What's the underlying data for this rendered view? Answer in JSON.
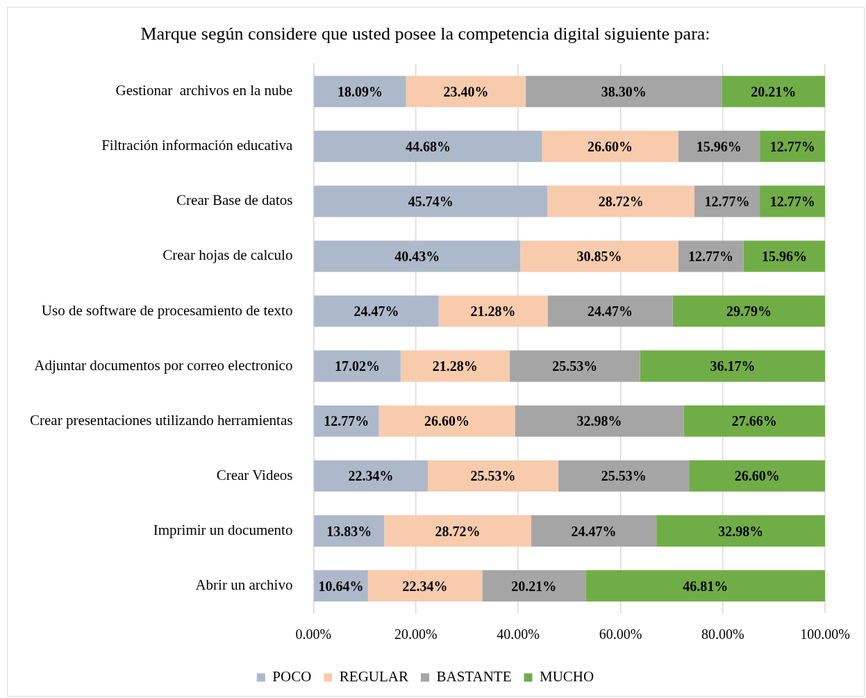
{
  "chart_data": {
    "type": "bar",
    "orientation": "horizontal",
    "stacked": true,
    "title": "Marque según considere que usted posee la competencia digital siguiente para:",
    "categories": [
      "Gestionar  archivos en la nube",
      "Filtración información educativa",
      "Crear Base de datos",
      "Crear hojas de calculo",
      "Uso de software de procesamiento de texto",
      "Adjuntar documentos por correo electronico",
      "Crear presentaciones utilizando herramientas",
      "Crear Videos",
      "Imprimir un documento",
      "Abrir un archivo"
    ],
    "series": [
      {
        "name": "POCO",
        "color": "#adb9ca",
        "values": [
          18.09,
          44.68,
          45.74,
          40.43,
          24.47,
          17.02,
          12.77,
          22.34,
          13.83,
          10.64
        ],
        "value_labels": [
          "18.09%",
          "44.68%",
          "45.74%",
          "40.43%",
          "24.47%",
          "17.02%",
          "12.77%",
          "22.34%",
          "13.83%",
          "10.64%"
        ]
      },
      {
        "name": "REGULAR",
        "color": "#f8cbad",
        "values": [
          23.4,
          26.6,
          28.72,
          30.85,
          21.28,
          21.28,
          26.6,
          25.53,
          28.72,
          22.34
        ],
        "value_labels": [
          "23.40%",
          "26.60%",
          "28.72%",
          "30.85%",
          "21.28%",
          "21.28%",
          "26.60%",
          "25.53%",
          "28.72%",
          "22.34%"
        ]
      },
      {
        "name": "BASTANTE",
        "color": "#a5a5a5",
        "values": [
          38.3,
          15.96,
          12.77,
          12.77,
          24.47,
          25.53,
          32.98,
          25.53,
          24.47,
          20.21
        ],
        "value_labels": [
          "38.30%",
          "15.96%",
          "12.77%",
          "12.77%",
          "24.47%",
          "25.53%",
          "32.98%",
          "25.53%",
          "24.47%",
          "20.21%"
        ]
      },
      {
        "name": "MUCHO",
        "color": "#70ad47",
        "values": [
          20.21,
          12.77,
          12.77,
          15.96,
          29.79,
          36.17,
          27.66,
          26.6,
          32.98,
          46.81
        ],
        "value_labels": [
          "20.21%",
          "12.77%",
          "12.77%",
          "15.96%",
          "29.79%",
          "36.17%",
          "27.66%",
          "26.60%",
          "32.98%",
          "46.81%"
        ]
      }
    ],
    "xlim": [
      0,
      100
    ],
    "xticks": [
      {
        "value": 0,
        "label": "0.00%"
      },
      {
        "value": 20,
        "label": "20.00%"
      },
      {
        "value": 40,
        "label": "40.00%"
      },
      {
        "value": 60,
        "label": "60.00%"
      },
      {
        "value": 80,
        "label": "80.00%"
      },
      {
        "value": 100,
        "label": "100.00%"
      }
    ],
    "grid": "x",
    "legend": "bottom"
  }
}
